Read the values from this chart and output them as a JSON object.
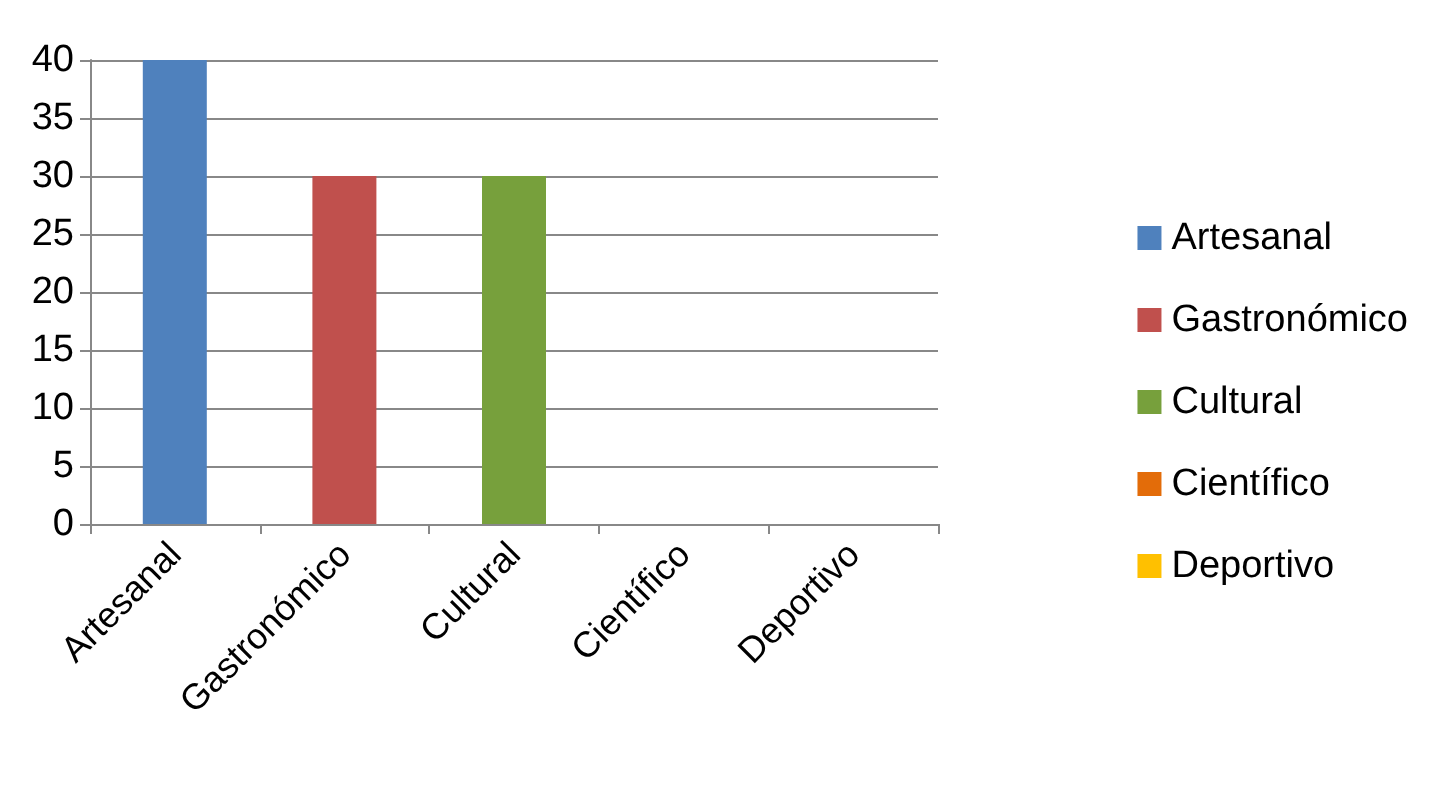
{
  "chart_data": {
    "type": "bar",
    "categories": [
      "Artesanal",
      "Gastronómico",
      "Cultural",
      "Científico",
      "Deportivo"
    ],
    "series": [
      {
        "name": "Artesanal",
        "color": "#4f81bd",
        "values": [
          40,
          null,
          null,
          null,
          null
        ]
      },
      {
        "name": "Gastronómico",
        "color": "#c0504d",
        "values": [
          null,
          30,
          null,
          null,
          null
        ]
      },
      {
        "name": "Cultural",
        "color": "#77a03c",
        "values": [
          null,
          null,
          30,
          null,
          null
        ]
      },
      {
        "name": "Científico",
        "color": "#e36c09",
        "values": [
          null,
          null,
          null,
          0,
          null
        ]
      },
      {
        "name": "Deportivo",
        "color": "#ffc000",
        "values": [
          null,
          null,
          null,
          null,
          0
        ]
      }
    ],
    "ylim": [
      0,
      40
    ],
    "yticks": [
      0,
      5,
      10,
      15,
      20,
      25,
      30,
      35,
      40
    ],
    "grid": "y",
    "legend": "right"
  }
}
